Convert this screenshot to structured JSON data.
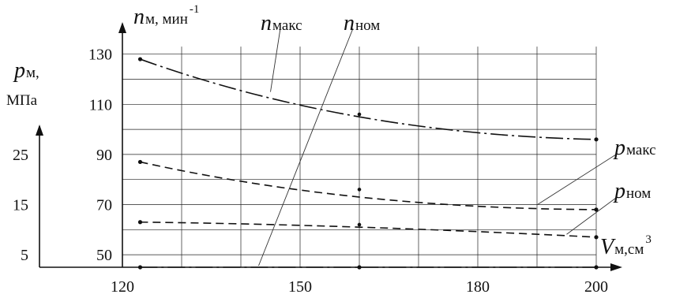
{
  "chart_data": {
    "type": "line",
    "x_axis": {
      "label_symbol": "V",
      "label_sub": "м,см",
      "label_sup": "3",
      "range": [
        120,
        200
      ],
      "grid": [
        120,
        130,
        140,
        150,
        160,
        170,
        180,
        190,
        200
      ],
      "ticks": [
        120,
        150,
        180,
        200
      ]
    },
    "y_axis_n": {
      "label_symbol": "n",
      "label_sub": "м, мин",
      "label_sup": "-1",
      "range": [
        45,
        135
      ],
      "grid": [
        50,
        60,
        70,
        80,
        90,
        100,
        110,
        120,
        130
      ],
      "ticks": [
        50,
        70,
        90,
        110,
        130
      ]
    },
    "y_axis_p": {
      "label_symbol": "p",
      "label_sub": "м,",
      "label_unit": "МПа",
      "ticks": [
        5,
        15,
        25
      ],
      "ticks_in_n_units": [
        50,
        70,
        90
      ]
    },
    "grid": true,
    "series": [
      {
        "name_symbol": "n",
        "name_sub": "макс",
        "style": "dashdot",
        "x": [
          123,
          160,
          200
        ],
        "y": [
          128,
          105,
          96
        ]
      },
      {
        "name_symbol": "p",
        "name_sub": "макс",
        "style": "dash",
        "x": [
          123,
          160,
          200
        ],
        "y": [
          87,
          73,
          68
        ]
      },
      {
        "name_symbol": "p",
        "name_sub": "ном",
        "style": "dash",
        "x": [
          123,
          160,
          200
        ],
        "y": [
          63,
          61,
          57
        ]
      },
      {
        "name_symbol": "n",
        "name_sub": "ном",
        "style": "dashdot",
        "x": [
          123,
          160,
          200
        ],
        "y": [
          45,
          45,
          45
        ]
      }
    ],
    "markers": [
      {
        "x": 160,
        "y": 106
      },
      {
        "x": 160,
        "y": 76
      },
      {
        "x": 160,
        "y": 62
      }
    ]
  }
}
